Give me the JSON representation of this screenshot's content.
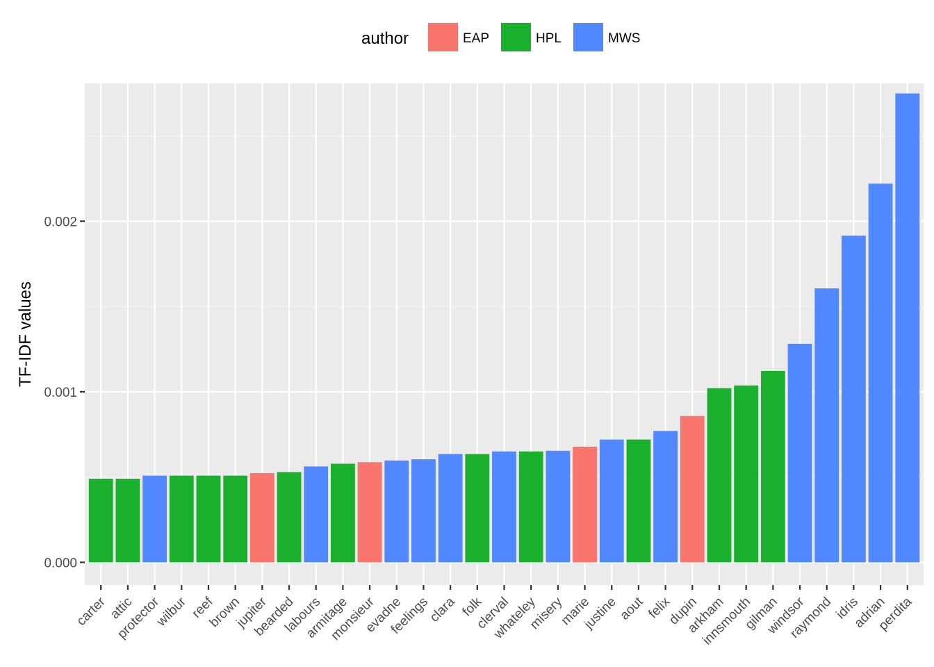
{
  "chart_data": {
    "type": "bar",
    "title": "",
    "xlabel": "",
    "ylabel": "TF-IDF values",
    "ylim": [
      -0.000133,
      0.002808
    ],
    "y_ticks": [
      0.0,
      0.001,
      0.002
    ],
    "y_tick_labels": [
      "0.000",
      "0.001",
      "0.002"
    ],
    "grid": true,
    "legend": {
      "title": "author",
      "placement": "top",
      "entries": [
        {
          "label": "EAP",
          "color": "#F8766D"
        },
        {
          "label": "HPL",
          "color": "#1AB02D"
        },
        {
          "label": "MWS",
          "color": "#5288FF"
        }
      ]
    },
    "categories": [
      "carter",
      "attic",
      "protector",
      "wilbur",
      "reef",
      "brown",
      "jupiter",
      "bearded",
      "labours",
      "armitage",
      "monsieur",
      "evadne",
      "feelings",
      "clara",
      "folk",
      "clerval",
      "whateley",
      "misery",
      "marie",
      "justine",
      "aout",
      "felix",
      "dupin",
      "arkham",
      "innsmouth",
      "gilman",
      "windsor",
      "raymond",
      "idris",
      "adrian",
      "perdita"
    ],
    "authors": [
      "HPL",
      "HPL",
      "MWS",
      "HPL",
      "HPL",
      "HPL",
      "EAP",
      "HPL",
      "MWS",
      "HPL",
      "EAP",
      "MWS",
      "MWS",
      "MWS",
      "HPL",
      "MWS",
      "HPL",
      "MWS",
      "EAP",
      "MWS",
      "HPL",
      "MWS",
      "EAP",
      "HPL",
      "HPL",
      "HPL",
      "MWS",
      "MWS",
      "MWS",
      "MWS",
      "MWS"
    ],
    "values": [
      0.00049,
      0.00049,
      0.000508,
      0.000508,
      0.000508,
      0.000508,
      0.000523,
      0.000529,
      0.000562,
      0.000578,
      0.000587,
      0.000597,
      0.000604,
      0.000635,
      0.000635,
      0.00065,
      0.00065,
      0.000654,
      0.000678,
      0.00072,
      0.00072,
      0.00077,
      0.000858,
      0.001021,
      0.001037,
      0.001122,
      0.001281,
      0.001606,
      0.001915,
      0.00222,
      0.002749
    ]
  },
  "colors": {
    "panel_bg": "#EBEBEB",
    "grid_major": "#FFFFFF",
    "grid_minor": "#F5F5F5",
    "axis_text": "#4D4D4D",
    "tick": "#333333",
    "text": "#000000"
  }
}
